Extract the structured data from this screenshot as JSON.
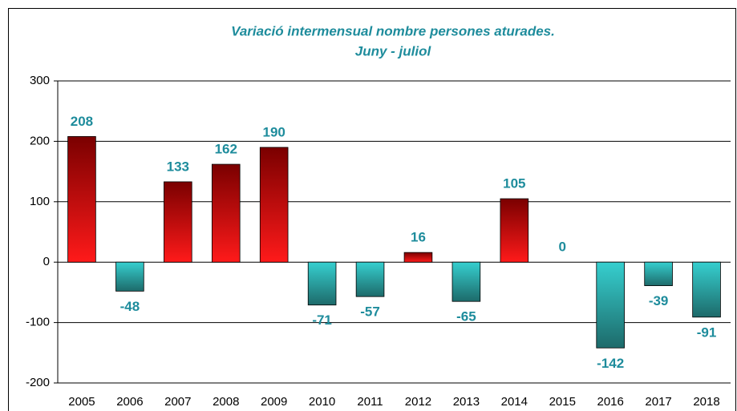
{
  "chart_data": {
    "type": "bar",
    "title": [
      "Variació intermensual nombre persones aturades.",
      "Juny - juliol"
    ],
    "categories": [
      "2005",
      "2006",
      "2007",
      "2008",
      "2009",
      "2010",
      "2011",
      "2012",
      "2013",
      "2014",
      "2015",
      "2016",
      "2017",
      "2018"
    ],
    "values": [
      208,
      -48,
      133,
      162,
      190,
      -71,
      -57,
      16,
      -65,
      105,
      0,
      -142,
      -39,
      -91
    ],
    "colors": {
      "positive": [
        "#7a0000",
        "#ff1a1a"
      ],
      "negative": [
        "#36cfcf",
        "#1d6a6a"
      ],
      "label": "#1e8c9c",
      "title": "#1e8c9c"
    },
    "ylim": [
      -200,
      300
    ],
    "yticks": [
      -200,
      -100,
      0,
      100,
      200,
      300
    ],
    "grid": true
  }
}
